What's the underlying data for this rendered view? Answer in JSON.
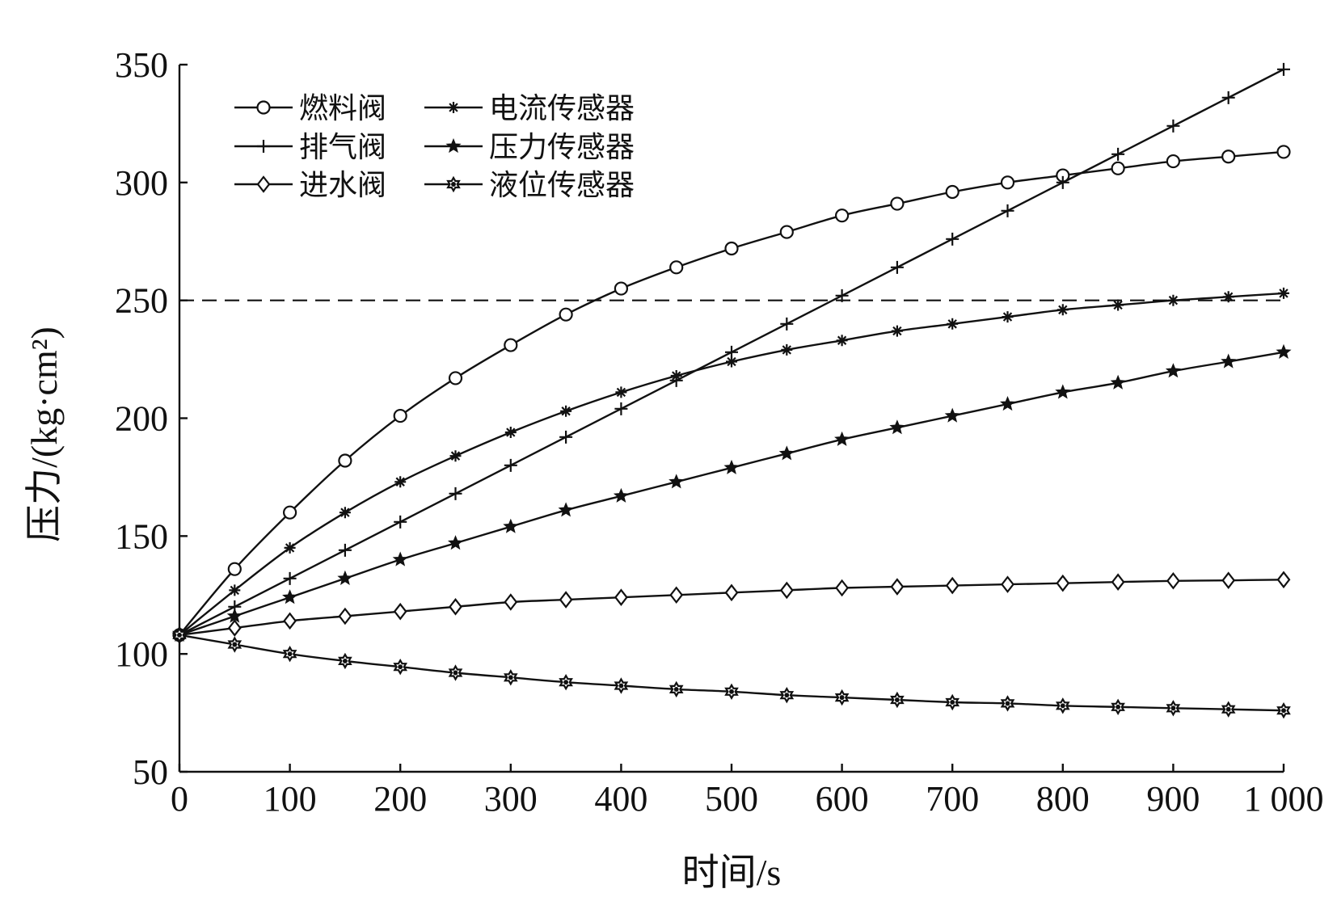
{
  "chart_data": {
    "type": "line",
    "xlabel": "时间/s",
    "ylabel": "压力/(kg·cm²)",
    "xlim": [
      0,
      1000
    ],
    "ylim": [
      50,
      350
    ],
    "x_ticks": [
      0,
      100,
      200,
      300,
      400,
      500,
      600,
      700,
      800,
      900,
      1000
    ],
    "x_tick_labels": [
      "0",
      "100",
      "200",
      "300",
      "400",
      "500",
      "600",
      "700",
      "800",
      "900",
      "1 000"
    ],
    "y_ticks": [
      50,
      100,
      150,
      200,
      250,
      300,
      350
    ],
    "y_tick_labels": [
      "50",
      "100",
      "150",
      "200",
      "250",
      "300",
      "350"
    ],
    "grid": false,
    "legend_position": "top-left",
    "reference_line": {
      "y": 250,
      "style": "dashed"
    },
    "x": [
      0,
      50,
      100,
      150,
      200,
      250,
      300,
      350,
      400,
      450,
      500,
      550,
      600,
      650,
      700,
      750,
      800,
      850,
      900,
      950,
      1000
    ],
    "series": [
      {
        "name": "燃料阀",
        "marker": "circle",
        "values": [
          108,
          136,
          160,
          182,
          201,
          217,
          231,
          244,
          255,
          264,
          272,
          279,
          286,
          291,
          296,
          300,
          303,
          306,
          309,
          311,
          313
        ]
      },
      {
        "name": "排气阀",
        "marker": "plus",
        "values": [
          108,
          120,
          132,
          144,
          156,
          168,
          180,
          192,
          204,
          216,
          228,
          240,
          252,
          264,
          276,
          288,
          300,
          312,
          324,
          336,
          348
        ]
      },
      {
        "name": "进水阀",
        "marker": "diamond",
        "values": [
          108,
          111,
          114,
          116,
          118,
          120,
          122,
          123,
          124,
          125,
          126,
          127,
          128,
          128.5,
          129,
          129.5,
          130,
          130.5,
          131,
          131.2,
          131.5
        ]
      },
      {
        "name": "电流传感器",
        "marker": "asterisk",
        "values": [
          108,
          127,
          145,
          160,
          173,
          184,
          194,
          203,
          211,
          218,
          224,
          229,
          233,
          237,
          240,
          243,
          246,
          248,
          250,
          251.5,
          253
        ]
      },
      {
        "name": "压力传感器",
        "marker": "star",
        "values": [
          108,
          116,
          124,
          132,
          140,
          147,
          154,
          161,
          167,
          173,
          179,
          185,
          191,
          196,
          201,
          206,
          211,
          215,
          220,
          224,
          228
        ]
      },
      {
        "name": "液位传感器",
        "marker": "hexagram",
        "values": [
          108,
          104,
          100,
          97,
          94.5,
          92,
          90,
          88,
          86.5,
          85,
          84,
          82.5,
          81.5,
          80.5,
          79.5,
          79,
          78,
          77.5,
          77,
          76.5,
          76
        ]
      }
    ]
  }
}
